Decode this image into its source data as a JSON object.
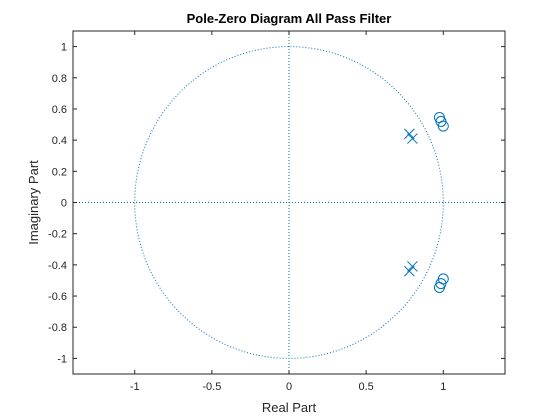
{
  "chart_data": {
    "type": "scatter",
    "title": "Pole-Zero Diagram All Pass Filter",
    "xlabel": "Real Part",
    "ylabel": "Imaginary Part",
    "xlim": [
      -1.4,
      1.4
    ],
    "ylim": [
      -1.1,
      1.1
    ],
    "x_ticks": [
      -1,
      -0.5,
      0,
      0.5,
      1
    ],
    "x_tick_labels": [
      "-1",
      "-0.5",
      "0",
      "0.5",
      "1"
    ],
    "y_ticks": [
      1,
      0.8,
      0.6,
      0.4,
      0.2,
      0,
      -0.2,
      -0.4,
      -0.6,
      -0.8,
      -1
    ],
    "y_tick_labels": [
      "1",
      "0.8",
      "0.6",
      "0.4",
      "0.2",
      "0",
      "-0.2",
      "-0.4",
      "-0.6",
      "-0.8",
      "-1"
    ],
    "grid": false,
    "unit_circle": true,
    "axis_lines": true,
    "color": "#0072BD",
    "series": [
      {
        "marker": "x",
        "points": [
          {
            "x": 0.78,
            "y": 0.44
          },
          {
            "x": 0.8,
            "y": 0.41
          },
          {
            "x": 0.78,
            "y": -0.44
          },
          {
            "x": 0.8,
            "y": -0.41
          }
        ]
      },
      {
        "marker": "o",
        "points": [
          {
            "x": 0.975,
            "y": 0.545
          },
          {
            "x": 0.985,
            "y": 0.52
          },
          {
            "x": 1.0,
            "y": 0.49
          },
          {
            "x": 0.975,
            "y": -0.545
          },
          {
            "x": 0.985,
            "y": -0.52
          },
          {
            "x": 1.0,
            "y": -0.49
          }
        ]
      }
    ]
  }
}
